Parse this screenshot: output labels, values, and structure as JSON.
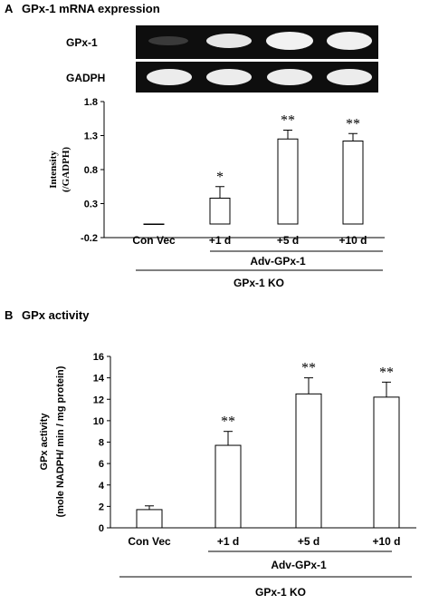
{
  "panel_a": {
    "letter": "A",
    "title": "GPx-1 mRNA expression",
    "gel_labels": [
      "GPx-1",
      "GADPH"
    ],
    "group_line_1": "Adv-GPx-1",
    "group_line_2": "GPx-1 KO"
  },
  "panel_b": {
    "letter": "B",
    "title": "GPx activity",
    "group_line_1": "Adv-GPx-1",
    "group_line_2": "GPx-1 KO"
  },
  "chart_data": [
    {
      "type": "bar",
      "categories": [
        "Con Vec",
        "+1 d",
        "+5 d",
        "+10 d"
      ],
      "values": [
        0.0,
        0.38,
        1.25,
        1.22
      ],
      "errors": [
        0.0,
        0.17,
        0.13,
        0.11
      ],
      "significance": [
        "",
        "*",
        "**",
        "**"
      ],
      "ylabel_line1": "Intensity",
      "ylabel_line2": "(/GADPH)",
      "ylim": [
        -0.2,
        1.8
      ],
      "yticks": [
        "-0.2",
        "0.3",
        "0.8",
        "1.3",
        "1.8"
      ],
      "ytick_values": [
        -0.2,
        0.3,
        0.8,
        1.3,
        1.8
      ],
      "grid": false
    },
    {
      "type": "bar",
      "categories": [
        "Con Vec",
        "+1 d",
        "+5 d",
        "+10 d"
      ],
      "values": [
        1.7,
        7.7,
        12.5,
        12.2
      ],
      "errors": [
        0.35,
        1.3,
        1.5,
        1.4
      ],
      "significance": [
        "",
        "**",
        "**",
        "**"
      ],
      "ylabel_line1": "GPx activity",
      "ylabel_line2": "(mole NADPH/ min / mg protein)",
      "ylim": [
        0,
        16
      ],
      "yticks": [
        "0",
        "2",
        "4",
        "6",
        "8",
        "10",
        "12",
        "14",
        "16"
      ],
      "ytick_values": [
        0,
        2,
        4,
        6,
        8,
        10,
        12,
        14,
        16
      ],
      "grid": false
    }
  ]
}
